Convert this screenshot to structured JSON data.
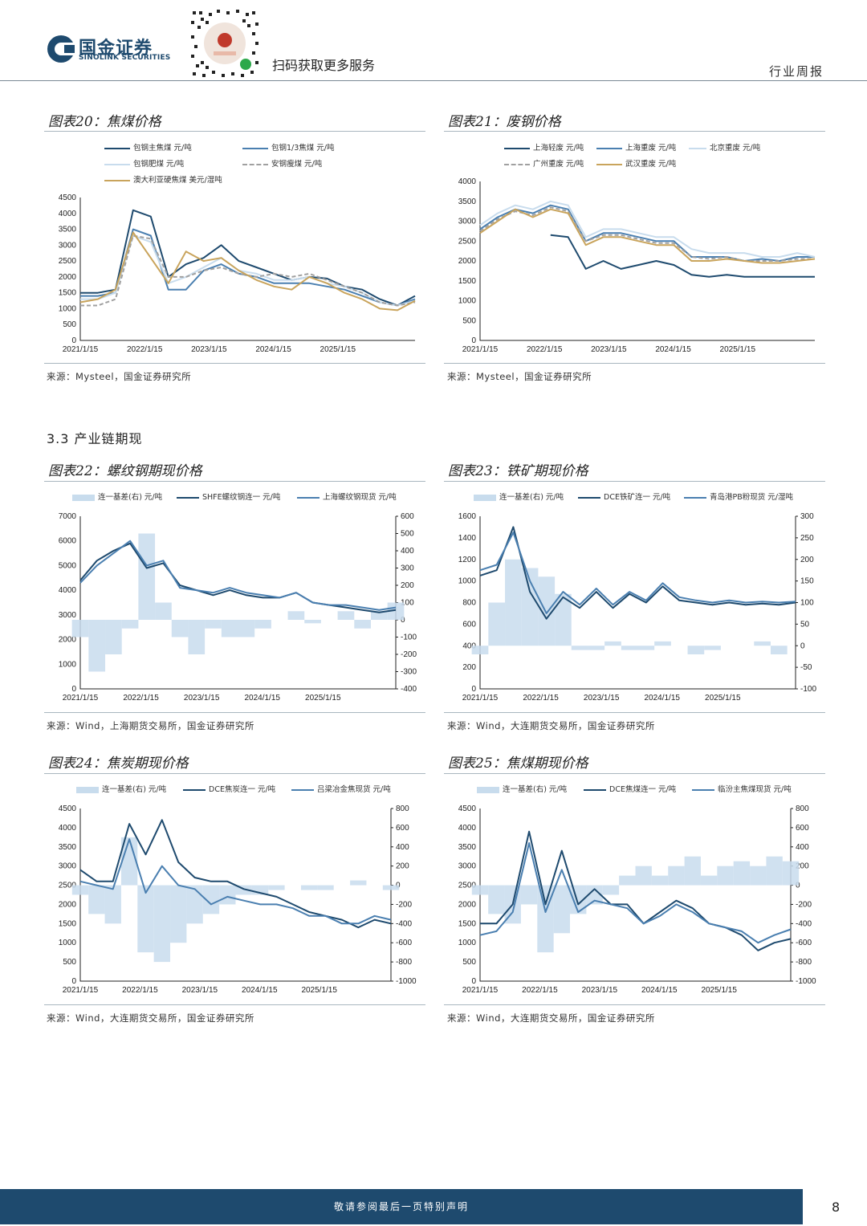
{
  "header": {
    "company_cn": "国金证券",
    "company_en": "SINOLINK SECURITIES",
    "scan_text": "扫码获取更多服务",
    "report_type": "行业周报"
  },
  "section": {
    "label": "3.3 产业链期现"
  },
  "figures": [
    {
      "title": "图表20：焦煤价格",
      "source": "来源：Mysteel，国金证券研究所",
      "legend": [
        "包钢主焦煤 元/吨",
        "包钢1/3焦煤 元/吨",
        "包钢肥煤 元/吨",
        "安钢瘦煤 元/吨",
        "澳大利亚硬焦煤 美元/湿吨"
      ]
    },
    {
      "title": "图表21：废钢价格",
      "source": "来源：Mysteel，国金证券研究所",
      "legend": [
        "上海轻废 元/吨",
        "上海重废 元/吨",
        "北京重废 元/吨",
        "广州重废 元/吨",
        "武汉重废 元/吨"
      ]
    },
    {
      "title": "图表22：螺纹钢期现价格",
      "source": "来源：Wind，上海期货交易所，国金证券研究所",
      "legend": [
        "连一基差(右) 元/吨",
        "SHFE螺纹钢连一 元/吨",
        "上海螺纹钢现货 元/吨"
      ]
    },
    {
      "title": "图表23：铁矿期现价格",
      "source": "来源：Wind，大连期货交易所，国金证券研究所",
      "legend": [
        "连一基差(右) 元/吨",
        "DCE铁矿连一 元/吨",
        "青岛港PB粉现货 元/湿吨"
      ]
    },
    {
      "title": "图表24：焦炭期现价格",
      "source": "来源：Wind，大连期货交易所，国金证券研究所",
      "legend": [
        "连一基差(右) 元/吨",
        "DCE焦炭连一 元/吨",
        "吕梁冶金焦现货 元/吨"
      ]
    },
    {
      "title": "图表25：焦煤期现价格",
      "source": "来源：Wind，大连期货交易所，国金证券研究所",
      "legend": [
        "连一基差(右) 元/吨",
        "DCE焦煤连一 元/吨",
        "临汾主焦煤现货 元/吨"
      ]
    }
  ],
  "footer": {
    "disclaimer": "敬请参阅最后一页特别声明",
    "page": "8"
  },
  "colors": {
    "navy": "#1e4a6e",
    "mid": "#4a7fb0",
    "light": "#c8dced",
    "gray": "#a0a0a0",
    "gold": "#c9a45c",
    "pale": "#c0d8ec"
  },
  "chart_data": [
    {
      "id": "fig20",
      "type": "line",
      "title": "图表20：焦煤价格",
      "ylim": [
        0,
        4500
      ],
      "yticks": [
        "0",
        "500",
        "1000",
        "1500",
        "2000",
        "2500",
        "3000",
        "3500",
        "4000",
        "4500"
      ],
      "xticks": [
        "2021/1/15",
        "2022/1/15",
        "2023/1/15",
        "2024/1/15",
        "2025/1/15"
      ],
      "series": [
        {
          "name": "包钢主焦煤 元/吨",
          "color": "#1e4a6e",
          "values": [
            1500,
            1500,
            1600,
            4100,
            3900,
            2000,
            2400,
            2600,
            3000,
            2500,
            2300,
            2100,
            1900,
            2000,
            1950,
            1700,
            1600,
            1300,
            1100,
            1400
          ]
        },
        {
          "name": "包钢1/3焦煤 元/吨",
          "color": "#4a7fb0",
          "values": [
            1400,
            1400,
            1500,
            3500,
            3300,
            1600,
            1600,
            2200,
            2400,
            2100,
            2000,
            1800,
            1800,
            1800,
            1700,
            1600,
            1400,
            1200,
            1100,
            1300
          ]
        },
        {
          "name": "包钢肥煤 元/吨",
          "color": "#c8dced",
          "values": [
            1300,
            1300,
            1500,
            3300,
            3100,
            1800,
            2000,
            2300,
            2600,
            2200,
            2100,
            1900,
            1900,
            2000,
            1800,
            1700,
            1500,
            1200,
            1100,
            1250
          ]
        },
        {
          "name": "安钢瘦煤 元/吨",
          "color": "#a0a0a0",
          "values": [
            1100,
            1100,
            1300,
            3300,
            3200,
            2000,
            2000,
            2200,
            2300,
            2100,
            2000,
            2100,
            2000,
            2100,
            1900,
            1700,
            1500,
            1200,
            1100,
            1200
          ]
        },
        {
          "name": "澳大利亚硬焦煤 美元/湿吨",
          "color": "#c9a45c",
          "values": [
            1200,
            1300,
            1600,
            3400,
            2600,
            1800,
            2800,
            2500,
            2600,
            2200,
            1900,
            1700,
            1600,
            2000,
            1800,
            1500,
            1300,
            1000,
            950,
            1250
          ]
        }
      ]
    },
    {
      "id": "fig21",
      "type": "line",
      "title": "图表21：废钢价格",
      "ylim": [
        0,
        4000
      ],
      "yticks": [
        "0",
        "500",
        "1000",
        "1500",
        "2000",
        "2500",
        "3000",
        "3500",
        "4000"
      ],
      "xticks": [
        "2021/1/15",
        "2022/1/15",
        "2023/1/15",
        "2024/1/15",
        "2025/1/15"
      ],
      "series": [
        {
          "name": "上海轻废 元/吨",
          "color": "#1e4a6e",
          "values": [
            null,
            null,
            null,
            null,
            2650,
            2600,
            1800,
            2000,
            1800,
            1900,
            2000,
            1900,
            1650,
            1600,
            1650,
            1600,
            1600,
            1600,
            1600,
            1600
          ]
        },
        {
          "name": "上海重废 元/吨",
          "color": "#4a7fb0",
          "values": [
            2800,
            3100,
            3300,
            3200,
            3400,
            3300,
            2500,
            2700,
            2700,
            2600,
            2500,
            2500,
            2100,
            2100,
            2100,
            2000,
            2050,
            2000,
            2100,
            2100
          ]
        },
        {
          "name": "北京重废 元/吨",
          "color": "#c8dced",
          "values": [
            2900,
            3200,
            3400,
            3300,
            3500,
            3400,
            2600,
            2800,
            2800,
            2700,
            2600,
            2600,
            2300,
            2200,
            2200,
            2200,
            2100,
            2100,
            2200,
            2100
          ]
        },
        {
          "name": "广州重废 元/吨",
          "color": "#a0a0a0",
          "values": [
            2750,
            3050,
            3250,
            3150,
            3350,
            3250,
            2500,
            2650,
            2650,
            2550,
            2450,
            2450,
            2100,
            2050,
            2100,
            2000,
            2000,
            2000,
            2050,
            2050
          ]
        },
        {
          "name": "武汉重废 元/吨",
          "color": "#c9a45c",
          "values": [
            2700,
            3000,
            3300,
            3100,
            3300,
            3200,
            2400,
            2600,
            2600,
            2500,
            2400,
            2400,
            2000,
            2000,
            2050,
            2000,
            1950,
            1950,
            2000,
            2050
          ]
        }
      ]
    },
    {
      "id": "fig22",
      "type": "line+area",
      "title": "图表22：螺纹钢期现价格",
      "ylim": [
        0,
        7000
      ],
      "ylim_right": [
        -400,
        600
      ],
      "yticks": [
        "0",
        "1000",
        "2000",
        "3000",
        "4000",
        "5000",
        "6000",
        "7000"
      ],
      "yticks_right": [
        "-400",
        "-300",
        "-200",
        "-100",
        "0",
        "100",
        "200",
        "300",
        "400",
        "500",
        "600"
      ],
      "xticks": [
        "2021/1/15",
        "2022/1/15",
        "2023/1/15",
        "2024/1/15",
        "2025/1/15"
      ],
      "series": [
        {
          "name": "连一基差(右) 元/吨",
          "color": "#c8dced",
          "axis": "right",
          "values": [
            -100,
            -300,
            -200,
            -50,
            500,
            100,
            -100,
            -200,
            -50,
            -100,
            -100,
            -50,
            0,
            50,
            -20,
            0,
            50,
            -50,
            50,
            100
          ]
        },
        {
          "name": "SHFE螺纹钢连一 元/吨",
          "color": "#1e4a6e",
          "values": [
            4400,
            5200,
            5600,
            5900,
            4900,
            5100,
            4200,
            4000,
            3800,
            4000,
            3800,
            3700,
            3700,
            3900,
            3500,
            3400,
            3300,
            3200,
            3100,
            3200
          ]
        },
        {
          "name": "上海螺纹钢现货 元/吨",
          "color": "#4a7fb0",
          "values": [
            4300,
            5000,
            5500,
            6000,
            5000,
            5200,
            4100,
            4000,
            3900,
            4100,
            3900,
            3800,
            3700,
            3900,
            3500,
            3400,
            3400,
            3300,
            3200,
            3300
          ]
        }
      ]
    },
    {
      "id": "fig23",
      "type": "line+area",
      "title": "图表23：铁矿期现价格",
      "ylim": [
        0,
        1600
      ],
      "ylim_right": [
        -100,
        300
      ],
      "yticks": [
        "0",
        "200",
        "400",
        "600",
        "800",
        "1000",
        "1200",
        "1400",
        "1600"
      ],
      "yticks_right": [
        "-100",
        "-50",
        "0",
        "50",
        "100",
        "150",
        "200",
        "250",
        "300"
      ],
      "xticks": [
        "2021/1/15",
        "2022/1/15",
        "2023/1/15",
        "2024/1/15",
        "2025/1/15"
      ],
      "series": [
        {
          "name": "连一基差(右) 元/吨",
          "color": "#c8dced",
          "axis": "right",
          "values": [
            -20,
            100,
            200,
            180,
            160,
            120,
            -10,
            -10,
            10,
            -10,
            -10,
            10,
            0,
            -20,
            -10,
            0,
            0,
            10,
            -20,
            0
          ]
        },
        {
          "name": "DCE铁矿连一 元/吨",
          "color": "#1e4a6e",
          "values": [
            1050,
            1100,
            1500,
            900,
            650,
            850,
            750,
            900,
            750,
            880,
            800,
            950,
            820,
            800,
            780,
            800,
            780,
            790,
            780,
            800
          ]
        },
        {
          "name": "青岛港PB粉现货 元/湿吨",
          "color": "#4a7fb0",
          "values": [
            1100,
            1150,
            1450,
            1000,
            700,
            900,
            780,
            930,
            780,
            900,
            820,
            980,
            850,
            820,
            800,
            820,
            800,
            810,
            800,
            810
          ]
        }
      ]
    },
    {
      "id": "fig24",
      "type": "line+area",
      "title": "图表24：焦炭期现价格",
      "ylim": [
        0,
        4500
      ],
      "ylim_right": [
        -1000,
        800
      ],
      "yticks": [
        "0",
        "500",
        "1000",
        "1500",
        "2000",
        "2500",
        "3000",
        "3500",
        "4000",
        "4500"
      ],
      "yticks_right": [
        "-1000",
        "-800",
        "-600",
        "-400",
        "-200",
        "0",
        "200",
        "400",
        "600",
        "800"
      ],
      "xticks": [
        "2021/1/15",
        "2022/1/15",
        "2023/1/15",
        "2024/1/15",
        "2025/1/15"
      ],
      "series": [
        {
          "name": "连一基差(右) 元/吨",
          "color": "#c8dced",
          "axis": "right",
          "values": [
            -100,
            -300,
            -400,
            500,
            -700,
            -800,
            -600,
            -400,
            -300,
            -200,
            -100,
            -100,
            -50,
            0,
            -50,
            -50,
            0,
            50,
            0,
            -50
          ]
        },
        {
          "name": "DCE焦炭连一 元/吨",
          "color": "#1e4a6e",
          "values": [
            2900,
            2600,
            2600,
            4100,
            3300,
            4200,
            3100,
            2700,
            2600,
            2600,
            2400,
            2300,
            2200,
            2000,
            1800,
            1700,
            1600,
            1400,
            1600,
            1500
          ]
        },
        {
          "name": "吕梁冶金焦现货 元/吨",
          "color": "#4a7fb0",
          "values": [
            2600,
            2500,
            2400,
            3700,
            2300,
            3000,
            2500,
            2400,
            2000,
            2200,
            2100,
            2000,
            2000,
            1900,
            1700,
            1700,
            1500,
            1500,
            1700,
            1600
          ]
        }
      ]
    },
    {
      "id": "fig25",
      "type": "line+area",
      "title": "图表25：焦煤期现价格",
      "ylim": [
        0,
        4500
      ],
      "ylim_right": [
        -1000,
        800
      ],
      "yticks": [
        "0",
        "500",
        "1000",
        "1500",
        "2000",
        "2500",
        "3000",
        "3500",
        "4000",
        "4500"
      ],
      "yticks_right": [
        "-1000",
        "-800",
        "-600",
        "-400",
        "-200",
        "0",
        "200",
        "400",
        "600",
        "800"
      ],
      "xticks": [
        "2021/1/15",
        "2022/1/15",
        "2023/1/15",
        "2024/1/15",
        "2025/1/15"
      ],
      "series": [
        {
          "name": "连一基差(右) 元/吨",
          "color": "#c8dced",
          "axis": "right",
          "values": [
            -100,
            -300,
            -400,
            -200,
            -700,
            -500,
            -300,
            -200,
            -100,
            100,
            200,
            100,
            200,
            300,
            100,
            200,
            250,
            200,
            300,
            250
          ]
        },
        {
          "name": "DCE焦煤连一 元/吨",
          "color": "#1e4a6e",
          "values": [
            1500,
            1500,
            2000,
            3900,
            2000,
            3400,
            2000,
            2400,
            2000,
            2000,
            1500,
            1800,
            2100,
            1900,
            1500,
            1400,
            1200,
            800,
            1000,
            1100
          ]
        },
        {
          "name": "临汾主焦煤现货 元/吨",
          "color": "#4a7fb0",
          "values": [
            1200,
            1300,
            1800,
            3600,
            1800,
            2900,
            1800,
            2100,
            2000,
            1900,
            1500,
            1700,
            2000,
            1800,
            1500,
            1400,
            1300,
            1000,
            1200,
            1350
          ]
        }
      ]
    }
  ]
}
